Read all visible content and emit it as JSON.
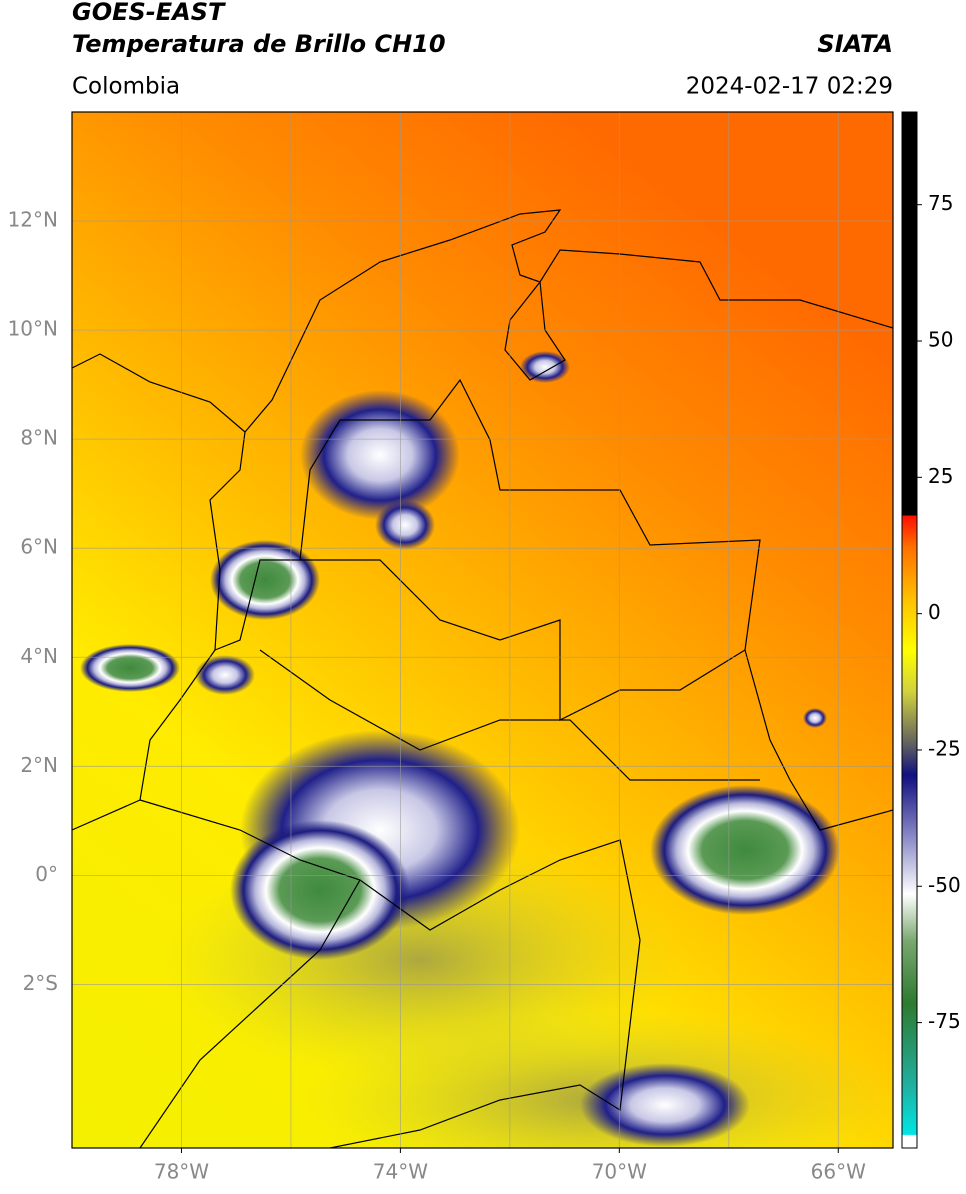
{
  "header": {
    "satellite": "GOES-EAST",
    "product": "Temperatura de Brillo CH10",
    "region": "Colombia",
    "source": "SIATA",
    "datetime": "2024-02-17 02:29"
  },
  "map": {
    "xlim": [
      -80,
      -65
    ],
    "ylim": [
      -5,
      14
    ],
    "xticks": [
      {
        "value": -78,
        "label": "78°W"
      },
      {
        "value": -74,
        "label": "74°W"
      },
      {
        "value": -70,
        "label": "70°W"
      },
      {
        "value": -66,
        "label": "66°W"
      }
    ],
    "xgrid": [
      -78,
      -76,
      -74,
      -72,
      -70,
      -68,
      -66
    ],
    "yticks": [
      {
        "value": 12,
        "label": "12°N"
      },
      {
        "value": 10,
        "label": "10°N"
      },
      {
        "value": 8,
        "label": "8°N"
      },
      {
        "value": 6,
        "label": "6°N"
      },
      {
        "value": 4,
        "label": "4°N"
      },
      {
        "value": 2,
        "label": "2°N"
      },
      {
        "value": 0,
        "label": "0°"
      },
      {
        "value": -2,
        "label": "2°S"
      }
    ]
  },
  "colorbar": {
    "lim": [
      -98,
      92
    ],
    "ticks": [
      75,
      50,
      25,
      0,
      -25,
      -50,
      -75
    ]
  }
}
